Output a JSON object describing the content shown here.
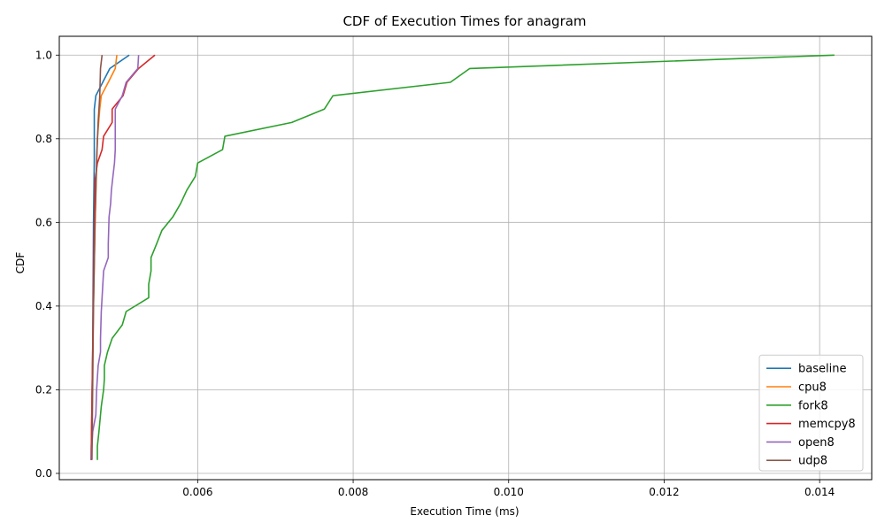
{
  "chart_data": {
    "type": "line",
    "title": "CDF of Execution Times for anagram",
    "xlabel": "Execution Time (ms)",
    "ylabel": "CDF",
    "xlim": [
      0.00422,
      0.01467
    ],
    "ylim": [
      -0.015,
      1.045
    ],
    "xticks": [
      0.006,
      0.008,
      0.01,
      0.012,
      0.014
    ],
    "xtick_labels": [
      "0.006",
      "0.008",
      "0.010",
      "0.012",
      "0.014"
    ],
    "yticks": [
      0.0,
      0.2,
      0.4,
      0.6,
      0.8,
      1.0
    ],
    "ytick_labels": [
      "0.0",
      "0.2",
      "0.4",
      "0.6",
      "0.8",
      "1.0"
    ],
    "grid": true,
    "legend_position": "bottom-right",
    "series": [
      {
        "name": "baseline",
        "color": "#1f77b4",
        "points": [
          [
            0.00463,
            0.032
          ],
          [
            0.00465,
            0.3
          ],
          [
            0.00466,
            0.6
          ],
          [
            0.00467,
            0.75
          ],
          [
            0.00467,
            0.87
          ],
          [
            0.00469,
            0.903
          ],
          [
            0.00487,
            0.968
          ],
          [
            0.00512,
            1.0
          ]
        ]
      },
      {
        "name": "cpu8",
        "color": "#ff7f0e",
        "points": [
          [
            0.00463,
            0.032
          ],
          [
            0.00466,
            0.4
          ],
          [
            0.00468,
            0.6
          ],
          [
            0.00471,
            0.8
          ],
          [
            0.00474,
            0.87
          ],
          [
            0.00476,
            0.903
          ],
          [
            0.00485,
            0.935
          ],
          [
            0.00494,
            0.968
          ],
          [
            0.00496,
            1.0
          ]
        ]
      },
      {
        "name": "fork8",
        "color": "#2ca02c",
        "points": [
          [
            0.00471,
            0.032
          ],
          [
            0.00471,
            0.065
          ],
          [
            0.00473,
            0.1
          ],
          [
            0.00476,
            0.16
          ],
          [
            0.00479,
            0.2
          ],
          [
            0.0048,
            0.226
          ],
          [
            0.0048,
            0.258
          ],
          [
            0.00484,
            0.29
          ],
          [
            0.0049,
            0.323
          ],
          [
            0.00503,
            0.355
          ],
          [
            0.00508,
            0.387
          ],
          [
            0.00537,
            0.42
          ],
          [
            0.00537,
            0.452
          ],
          [
            0.0054,
            0.484
          ],
          [
            0.0054,
            0.516
          ],
          [
            0.00547,
            0.548
          ],
          [
            0.00554,
            0.581
          ],
          [
            0.00568,
            0.613
          ],
          [
            0.00578,
            0.645
          ],
          [
            0.00586,
            0.677
          ],
          [
            0.00597,
            0.71
          ],
          [
            0.006,
            0.742
          ],
          [
            0.00632,
            0.774
          ],
          [
            0.00635,
            0.806
          ],
          [
            0.00721,
            0.839
          ],
          [
            0.00763,
            0.871
          ],
          [
            0.00774,
            0.903
          ],
          [
            0.00925,
            0.935
          ],
          [
            0.0095,
            0.968
          ],
          [
            0.01419,
            1.0
          ]
        ]
      },
      {
        "name": "memcpy8",
        "color": "#d62728",
        "points": [
          [
            0.00463,
            0.032
          ],
          [
            0.00465,
            0.3
          ],
          [
            0.00467,
            0.6
          ],
          [
            0.00468,
            0.7
          ],
          [
            0.00471,
            0.742
          ],
          [
            0.00477,
            0.774
          ],
          [
            0.00479,
            0.806
          ],
          [
            0.0049,
            0.839
          ],
          [
            0.0049,
            0.871
          ],
          [
            0.00504,
            0.903
          ],
          [
            0.00509,
            0.935
          ],
          [
            0.00524,
            0.968
          ],
          [
            0.00545,
            1.0
          ]
        ]
      },
      {
        "name": "open8",
        "color": "#9467bd",
        "points": [
          [
            0.00463,
            0.032
          ],
          [
            0.00465,
            0.1
          ],
          [
            0.00469,
            0.14
          ],
          [
            0.0047,
            0.2
          ],
          [
            0.00472,
            0.258
          ],
          [
            0.00475,
            0.29
          ],
          [
            0.00475,
            0.323
          ],
          [
            0.00476,
            0.387
          ],
          [
            0.00478,
            0.452
          ],
          [
            0.00479,
            0.484
          ],
          [
            0.00485,
            0.516
          ],
          [
            0.00485,
            0.548
          ],
          [
            0.00486,
            0.613
          ],
          [
            0.00488,
            0.645
          ],
          [
            0.00489,
            0.677
          ],
          [
            0.00491,
            0.71
          ],
          [
            0.00493,
            0.742
          ],
          [
            0.00494,
            0.774
          ],
          [
            0.00494,
            0.806
          ],
          [
            0.00494,
            0.839
          ],
          [
            0.00494,
            0.871
          ],
          [
            0.00503,
            0.903
          ],
          [
            0.00508,
            0.935
          ],
          [
            0.00523,
            0.968
          ],
          [
            0.00524,
            1.0
          ]
        ]
      },
      {
        "name": "udp8",
        "color": "#8c564b",
        "points": [
          [
            0.00464,
            0.032
          ],
          [
            0.00466,
            0.4
          ],
          [
            0.00468,
            0.6
          ],
          [
            0.0047,
            0.75
          ],
          [
            0.00472,
            0.84
          ],
          [
            0.00474,
            0.9
          ],
          [
            0.00475,
            0.968
          ],
          [
            0.00477,
            1.0
          ]
        ]
      }
    ]
  }
}
